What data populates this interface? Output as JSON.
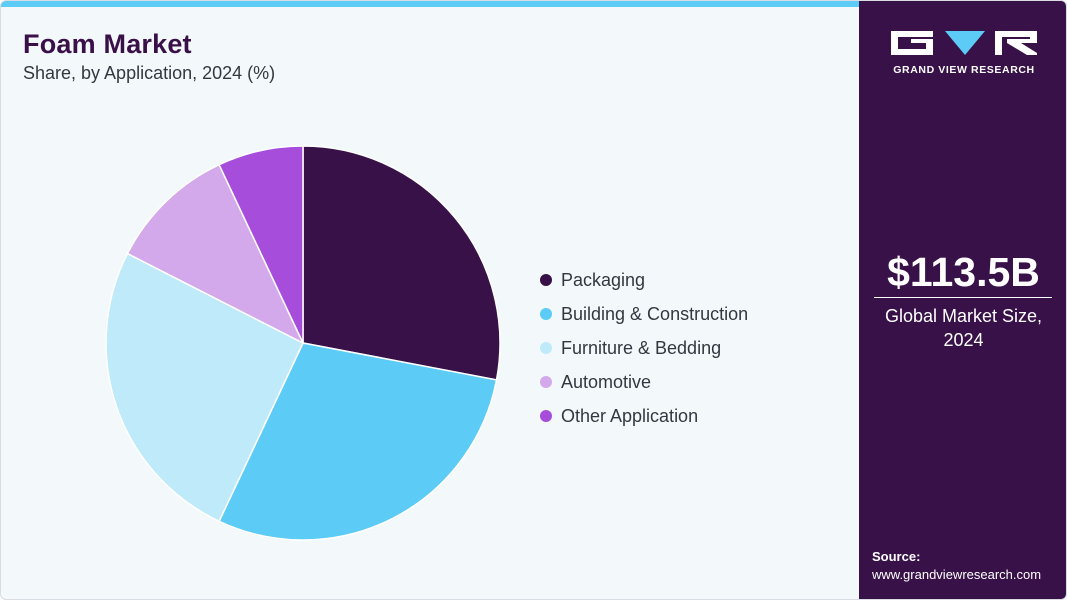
{
  "chart_data": {
    "type": "pie",
    "title": "Foam Market",
    "subtitle": "Share, by Application, 2024 (%)",
    "categories": [
      "Packaging",
      "Building & Construction",
      "Furniture & Bedding",
      "Automotive",
      "Other Application"
    ],
    "values": [
      28.0,
      29.0,
      25.5,
      10.5,
      7.0
    ],
    "colors": [
      "#371147",
      "#5ccbf5",
      "#bfeaf9",
      "#d3a9ec",
      "#a64ddb"
    ],
    "legend_position": "right"
  },
  "sidebar": {
    "brand": "GRAND VIEW RESEARCH",
    "market_size": "$113.5B",
    "market_size_label": "Global Market Size, 2024",
    "source_label": "Source:",
    "source_url": "www.grandviewresearch.com"
  }
}
